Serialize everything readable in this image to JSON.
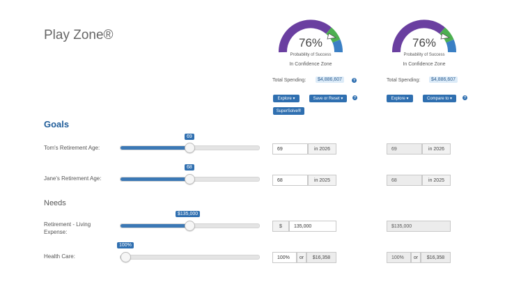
{
  "page": {
    "title": "Play Zone®"
  },
  "scenarios": [
    {
      "gauge": {
        "percent_text": "76%",
        "percent": 0.76,
        "label": "Probability of Success",
        "zone": "In Confidence Zone"
      },
      "spending": {
        "label": "Total Spending:",
        "value": "$4,886,607"
      },
      "buttons": {
        "explore": "Explore ▾",
        "secondary": "Save or Reset ▾",
        "supersolve": "SuperSolve®"
      },
      "help": "?"
    },
    {
      "gauge": {
        "percent_text": "76%",
        "percent": 0.76,
        "label": "Probability of Success",
        "zone": "In Confidence Zone"
      },
      "spending": {
        "label": "Total Spending:",
        "value": "$4,886,607"
      },
      "buttons": {
        "explore": "Explore ▾",
        "secondary": "Compare to ▾"
      },
      "help": "?"
    }
  ],
  "sections": {
    "goals": "Goals",
    "needs": "Needs"
  },
  "rows": {
    "tom": {
      "label": "Tom's Retirement Age:",
      "slider_value": "69",
      "slider_fraction": 0.5,
      "input": "69",
      "addon": "in 2026",
      "compare_input": "69",
      "compare_addon": "in 2026"
    },
    "jane": {
      "label": "Jane's Retirement Age:",
      "slider_value": "68",
      "slider_fraction": 0.5,
      "input": "68",
      "addon": "in 2025",
      "compare_input": "68",
      "compare_addon": "in 2025"
    },
    "living": {
      "label_line1": "Retirement - Living",
      "label_line2": "Expense:",
      "slider_value": "$135,000",
      "slider_fraction": 0.5,
      "currency": "$",
      "input": "135,000",
      "compare_input": "$135,000"
    },
    "health": {
      "label": "Health Care:",
      "slider_value": "100%",
      "slider_fraction": 0.04,
      "input": "100%",
      "or_text": "or",
      "amount": "$16,358",
      "compare_input": "100%",
      "compare_or": "or",
      "compare_amount": "$16,358"
    }
  },
  "colors": {
    "accent": "#2f6fb0",
    "gauge_purple": "#6a3fa0",
    "gauge_blue": "#3a7fc4",
    "gauge_green": "#4caf50"
  }
}
